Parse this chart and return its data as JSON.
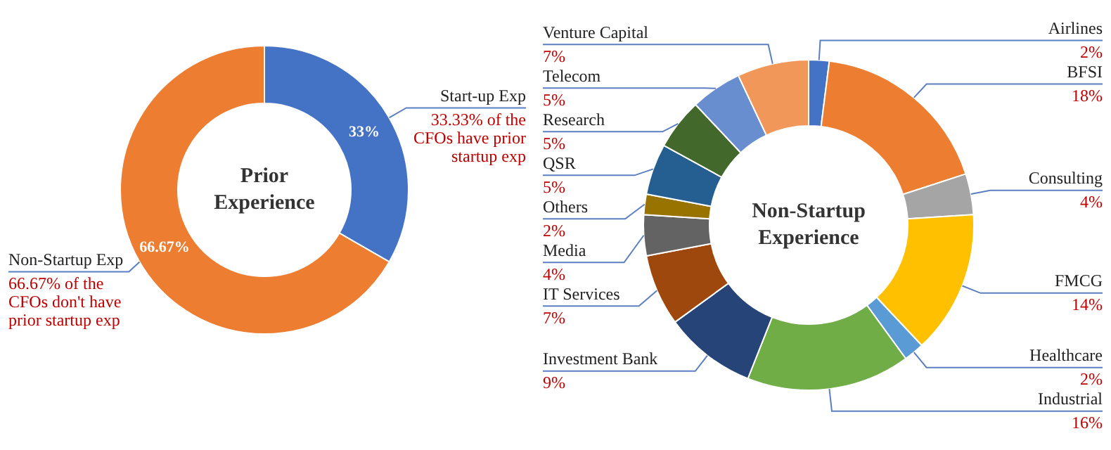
{
  "chart_data": [
    {
      "type": "donut",
      "title": "Prior Experience",
      "categories": [
        "Start-up Exp",
        "Non-Startup Exp"
      ],
      "values": [
        33.33,
        66.67
      ],
      "colors": [
        "#4472c4",
        "#ed7d31"
      ],
      "value_labels": [
        "33%",
        "66.67%"
      ],
      "annotations": [
        "33.33% of the CFOs have prior  startup exp",
        "66.67% of the CFOs don't have prior startup exp"
      ]
    },
    {
      "type": "donut",
      "title": "Non-Startup Experience",
      "categories": [
        "Airlines",
        "BFSI",
        "Consulting",
        "FMCG",
        "Healthcare",
        "Industrial",
        "Investment Bank",
        "IT Services",
        "Media",
        "Others",
        "QSR",
        "Research",
        "Telecom",
        "Venture Capital"
      ],
      "values": [
        2,
        18,
        4,
        14,
        2,
        16,
        9,
        7,
        4,
        2,
        5,
        5,
        5,
        7
      ],
      "colors": [
        "#4472c4",
        "#ed7d31",
        "#a5a5a5",
        "#ffc000",
        "#5b9bd5",
        "#70ad47",
        "#264478",
        "#9e480e",
        "#636363",
        "#997300",
        "#255e91",
        "#43682b",
        "#698ed0",
        "#f1975a"
      ],
      "value_labels": [
        "2%",
        "18%",
        "4%",
        "14%",
        "2%",
        "16%",
        "9%",
        "7%",
        "4%",
        "2%",
        "5%",
        "5%",
        "5%",
        "7%"
      ]
    }
  ]
}
